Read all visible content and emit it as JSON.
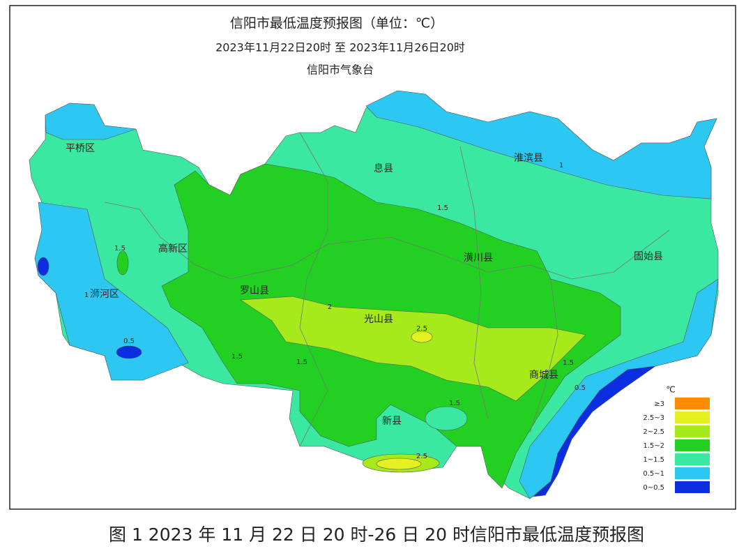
{
  "header": {
    "title": "信阳市最低温度预报图（单位：℃）",
    "period": "2023年11月22日20时  至  2023年11月26日20时",
    "agency": "信阳市气象台"
  },
  "regions": [
    "平桥区",
    "浉河区",
    "高新区",
    "罗山县",
    "光山县",
    "息县",
    "淮滨县",
    "潢川县",
    "固始县",
    "商城县",
    "新县"
  ],
  "contour_labels": [
    "1",
    "1.5",
    "1.5",
    "1",
    "2",
    "2.5",
    "1.5",
    "1.5",
    "0.5",
    "1.5",
    "1.5",
    "0.5",
    "2.5"
  ],
  "legend": {
    "unit": "℃",
    "items": [
      {
        "label": "≥3",
        "color": "#ff8c00"
      },
      {
        "label": "2.5~3",
        "color": "#e6f020"
      },
      {
        "label": "2~2.5",
        "color": "#a6ea1c"
      },
      {
        "label": "1.5~2",
        "color": "#22d022"
      },
      {
        "label": "1~1.5",
        "color": "#3ae8a2"
      },
      {
        "label": "0.5~1",
        "color": "#2cc8f2"
      },
      {
        "label": "0~0.5",
        "color": "#0a2ee0"
      }
    ]
  },
  "caption": "图 1 2023 年 11 月 22 日 20 时-26 日 20 时信阳市最低温度预报图"
}
